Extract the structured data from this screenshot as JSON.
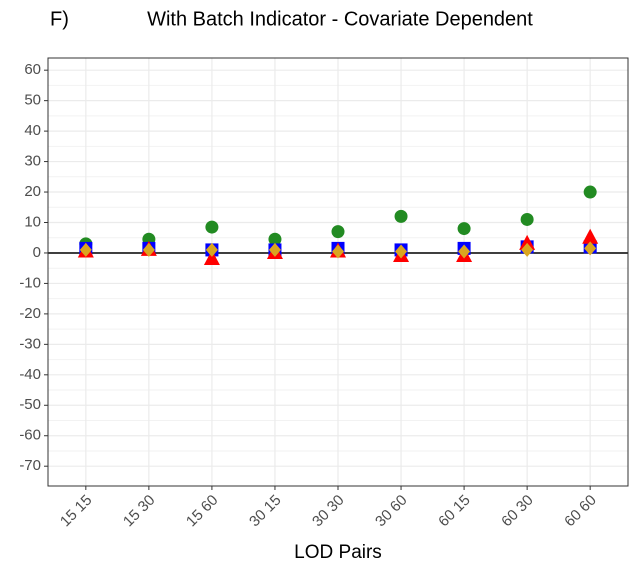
{
  "chart_data": {
    "type": "scatter",
    "panel_label": "F)",
    "title": "With Batch Indicator - Covariate Dependent",
    "x_label": "LOD Pairs",
    "categories": [
      "15 15",
      "15 30",
      "15 60",
      "30 15",
      "30 30",
      "30 60",
      "60 15",
      "60 30",
      "60 60"
    ],
    "series": [
      {
        "color": "#228b22",
        "marker": "circle",
        "values": [
          3,
          4.5,
          8.5,
          4.5,
          7,
          12,
          8,
          11,
          20
        ]
      },
      {
        "color": "#0000ff",
        "marker": "square",
        "values": [
          1.5,
          1.5,
          1,
          1,
          1.5,
          1,
          1.5,
          2,
          2
        ]
      },
      {
        "color": "#ff0000",
        "marker": "triangle",
        "values": [
          0.5,
          1,
          -2,
          0,
          0.5,
          -1,
          -1,
          3,
          5
        ]
      },
      {
        "color": "#daa520",
        "marker": "diamond",
        "values": [
          1,
          1,
          1,
          1,
          0.5,
          0.5,
          0.5,
          1,
          1.5
        ]
      }
    ],
    "reference_line": 0,
    "ylim": [
      -76.5,
      64
    ],
    "yticks": [
      60,
      50,
      40,
      30,
      20,
      10,
      0,
      -10,
      -20,
      -30,
      -40,
      -50,
      -60,
      -70
    ],
    "grid": true
  }
}
